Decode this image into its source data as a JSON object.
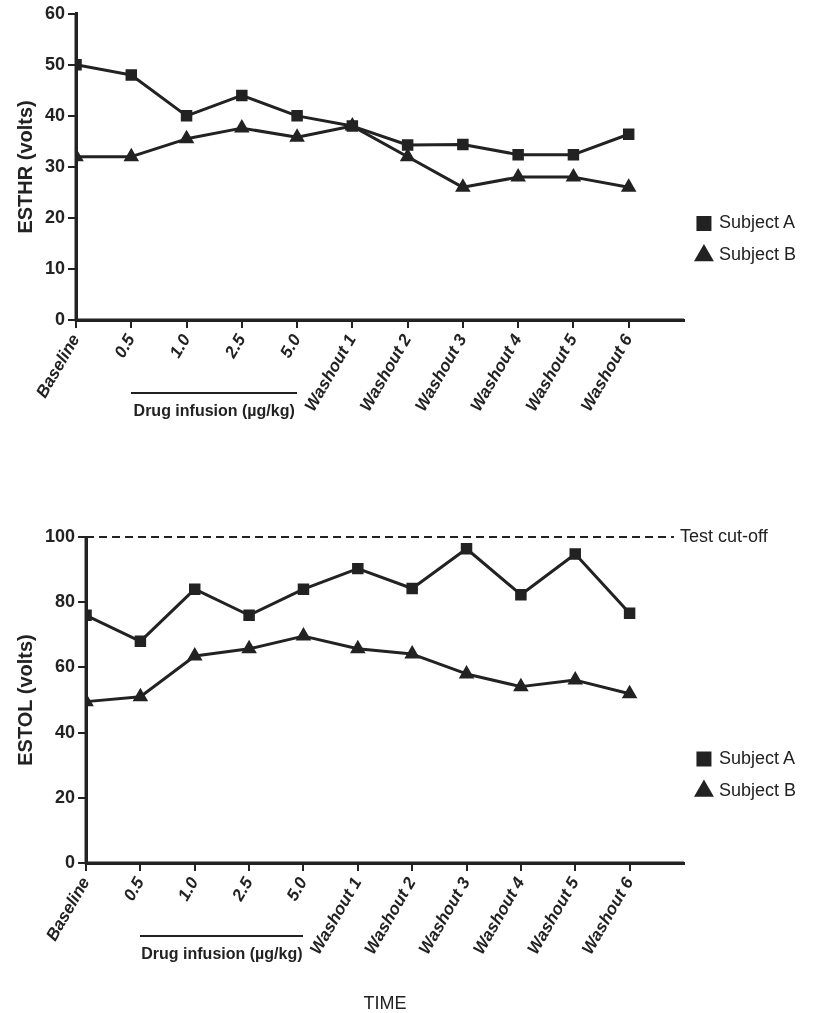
{
  "chart_data": [
    {
      "type": "line",
      "ylabel": "ESTHR (volts)",
      "categories": [
        "Baseline",
        "0.5",
        "1.0",
        "2.5",
        "5.0",
        "Washout 1",
        "Washout 2",
        "Washout 3",
        "Washout 4",
        "Washout 5",
        "Washout 6"
      ],
      "series": [
        {
          "name": "Subject A",
          "color": "#222222",
          "marker": "square",
          "values": [
            50,
            48,
            40,
            44,
            40,
            38,
            34.3,
            34.4,
            32.4,
            32.4,
            36.4
          ]
        },
        {
          "name": "Subject B",
          "color": "#222222",
          "marker": "triangle",
          "values": [
            32,
            32,
            35.5,
            37.6,
            35.8,
            38,
            32,
            26,
            28,
            28,
            26
          ]
        }
      ],
      "ylim": [
        0,
        60
      ],
      "yticks": [
        0,
        10,
        20,
        30,
        40,
        50,
        60
      ],
      "grid": false,
      "legend": "right",
      "annotations": [
        "Drug infusion (µg/kg)"
      ]
    },
    {
      "type": "line",
      "ylabel": "ESTOL (volts)",
      "xlabel": "TIME",
      "categories": [
        "Baseline",
        "0.5",
        "1.0",
        "2.5",
        "5.0",
        "Washout 1",
        "Washout 2",
        "Washout 3",
        "Washout 4",
        "Washout 5",
        "Washout 6"
      ],
      "series": [
        {
          "name": "Subject A",
          "color": "#222222",
          "marker": "square",
          "values": [
            76,
            68,
            84,
            76,
            84,
            90.3,
            84.2,
            96.4,
            82.3,
            94.8,
            76.6
          ]
        },
        {
          "name": "Subject B",
          "color": "#222222",
          "marker": "triangle",
          "values": [
            49.5,
            51,
            63.5,
            65.7,
            69.6,
            65.7,
            64.1,
            58,
            54.1,
            56.1,
            51.9
          ]
        }
      ],
      "ylim": [
        0,
        100
      ],
      "yticks": [
        0,
        20,
        40,
        60,
        80,
        100
      ],
      "grid": false,
      "legend": "right",
      "ref_lines": [
        {
          "axis": "y",
          "value": 100,
          "label": "Test cut-off",
          "line_style": "dashed",
          "color": "#222222"
        }
      ],
      "annotations": [
        "Drug infusion (µg/kg)"
      ]
    }
  ]
}
